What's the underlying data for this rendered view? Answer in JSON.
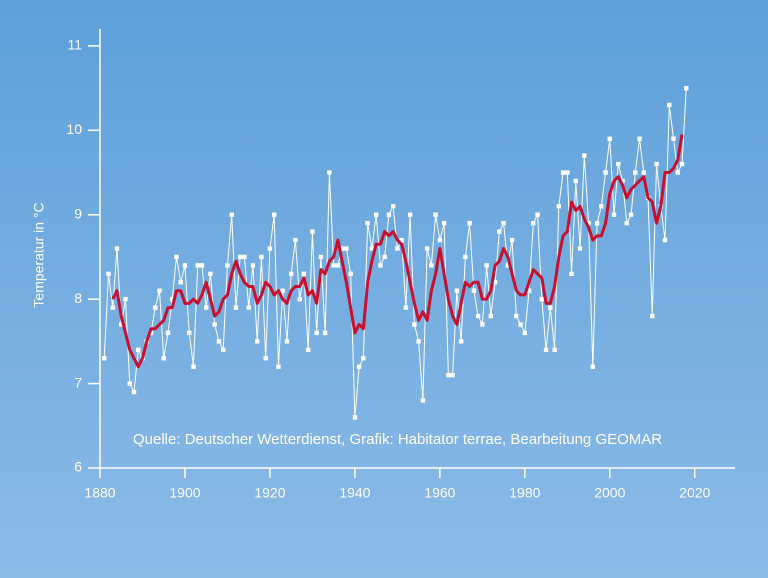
{
  "chart_data": {
    "type": "line",
    "y_label": "Temperatur in °C",
    "annotation": "Quelle: Deutscher Wetterdienst, Grafik: Habitator terrae, Bearbeitung GEOMAR",
    "x": [
      1881,
      1882,
      1883,
      1884,
      1885,
      1886,
      1887,
      1888,
      1889,
      1890,
      1891,
      1892,
      1893,
      1894,
      1895,
      1896,
      1897,
      1898,
      1899,
      1900,
      1901,
      1902,
      1903,
      1904,
      1905,
      1906,
      1907,
      1908,
      1909,
      1910,
      1911,
      1912,
      1913,
      1914,
      1915,
      1916,
      1917,
      1918,
      1919,
      1920,
      1921,
      1922,
      1923,
      1924,
      1925,
      1926,
      1927,
      1928,
      1929,
      1930,
      1931,
      1932,
      1933,
      1934,
      1935,
      1936,
      1937,
      1938,
      1939,
      1940,
      1941,
      1942,
      1943,
      1944,
      1945,
      1946,
      1947,
      1948,
      1949,
      1950,
      1951,
      1952,
      1953,
      1954,
      1955,
      1956,
      1957,
      1958,
      1959,
      1960,
      1961,
      1962,
      1963,
      1964,
      1965,
      1966,
      1967,
      1968,
      1969,
      1970,
      1971,
      1972,
      1973,
      1974,
      1975,
      1976,
      1977,
      1978,
      1979,
      1980,
      1981,
      1982,
      1983,
      1984,
      1985,
      1986,
      1987,
      1988,
      1989,
      1990,
      1991,
      1992,
      1993,
      1994,
      1995,
      1996,
      1997,
      1998,
      1999,
      2000,
      2001,
      2002,
      2003,
      2004,
      2005,
      2006,
      2007,
      2008,
      2009,
      2010,
      2011,
      2012,
      2013,
      2014,
      2015,
      2016,
      2017,
      2018
    ],
    "series": [
      {
        "color": "#ffffff",
        "markers": true,
        "values": [
          7.3,
          8.3,
          7.9,
          8.6,
          7.7,
          8.0,
          7.0,
          6.9,
          7.4,
          7.3,
          7.5,
          7.6,
          7.9,
          8.1,
          7.3,
          7.6,
          8.0,
          8.5,
          8.2,
          8.4,
          7.6,
          7.2,
          8.4,
          8.4,
          7.9,
          8.3,
          7.7,
          7.5,
          7.4,
          8.4,
          9.0,
          7.9,
          8.5,
          8.5,
          7.9,
          8.4,
          7.5,
          8.5,
          7.3,
          8.6,
          9.0,
          7.2,
          8.1,
          7.5,
          8.3,
          8.7,
          8.0,
          8.3,
          7.4,
          8.8,
          7.6,
          8.5,
          7.6,
          9.5,
          8.4,
          8.4,
          8.6,
          8.6,
          8.3,
          6.6,
          7.2,
          7.3,
          8.9,
          8.6,
          9.0,
          8.4,
          8.5,
          9.0,
          9.1,
          8.6,
          8.7,
          7.9,
          9.0,
          7.7,
          7.5,
          6.8,
          8.6,
          8.4,
          9.0,
          8.7,
          8.9,
          7.1,
          7.1,
          8.1,
          7.5,
          8.5,
          8.9,
          8.1,
          7.8,
          7.7,
          8.4,
          7.8,
          8.2,
          8.8,
          8.9,
          8.4,
          8.7,
          7.8,
          7.7,
          7.6,
          8.1,
          8.9,
          9.0,
          8.0,
          7.4,
          7.9,
          7.4,
          9.1,
          9.5,
          9.5,
          8.3,
          9.4,
          8.6,
          9.7,
          8.9,
          7.2,
          8.9,
          9.1,
          9.5,
          9.9,
          9.0,
          9.6,
          9.4,
          8.9,
          9.0,
          9.5,
          9.9,
          9.5,
          9.2,
          7.8,
          9.6,
          9.1,
          8.7,
          10.3,
          9.9,
          9.5,
          9.6,
          10.5
        ]
      },
      {
        "color": "#c8102e",
        "markers": false,
        "values": [
          null,
          null,
          8.0,
          8.1,
          7.8,
          7.6,
          7.4,
          7.3,
          7.2,
          7.3,
          7.5,
          7.65,
          7.65,
          7.7,
          7.75,
          7.9,
          7.9,
          8.1,
          8.1,
          7.95,
          7.95,
          8.0,
          7.95,
          8.05,
          8.2,
          8.0,
          7.8,
          7.85,
          8.0,
          8.05,
          8.3,
          8.45,
          8.3,
          8.2,
          8.15,
          8.15,
          7.95,
          8.05,
          8.2,
          8.15,
          8.05,
          8.1,
          8.0,
          7.95,
          8.1,
          8.15,
          8.15,
          8.25,
          8.05,
          8.1,
          7.95,
          8.35,
          8.3,
          8.45,
          8.5,
          8.7,
          8.45,
          8.2,
          7.9,
          7.6,
          7.7,
          7.65,
          8.2,
          8.45,
          8.65,
          8.65,
          8.8,
          8.75,
          8.8,
          8.7,
          8.65,
          8.45,
          8.2,
          7.95,
          7.75,
          7.85,
          7.75,
          8.1,
          8.3,
          8.6,
          8.3,
          8.0,
          7.8,
          7.7,
          7.95,
          8.2,
          8.15,
          8.2,
          8.2,
          8.0,
          8.0,
          8.1,
          8.4,
          8.45,
          8.6,
          8.5,
          8.3,
          8.1,
          8.05,
          8.05,
          8.2,
          8.35,
          8.3,
          8.25,
          7.95,
          7.95,
          8.15,
          8.5,
          8.75,
          8.8,
          9.15,
          9.05,
          9.1,
          8.95,
          8.85,
          8.7,
          8.75,
          8.75,
          8.9,
          9.25,
          9.4,
          9.45,
          9.35,
          9.2,
          9.3,
          9.35,
          9.4,
          9.45,
          9.2,
          9.15,
          8.9,
          9.1,
          9.5,
          9.5,
          9.55,
          9.65,
          9.95,
          null
        ]
      }
    ],
    "xlim": [
      1880,
      2029
    ],
    "xticks": [
      1880,
      1900,
      1920,
      1940,
      1960,
      1980,
      2000,
      2020
    ],
    "ylim": [
      6,
      11.2
    ],
    "yticks": [
      6,
      7,
      8,
      9,
      10,
      11
    ]
  }
}
